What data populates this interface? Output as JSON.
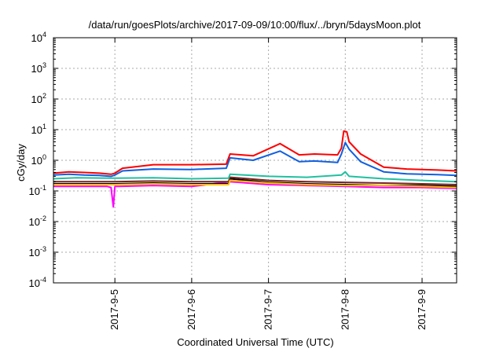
{
  "chart_data": {
    "type": "line",
    "title": "/data/run/goesPlots/archive/2017-09-09/10:00/flux/../bryn/5daysMoon.plot",
    "xlabel": "Coordinated Universal Time (UTC)",
    "ylabel": "cGy/day",
    "x_unit": "days from 2017-09-05 00:00 UTC",
    "xlim": [
      -0.8,
      4.45
    ],
    "x_ticks": [
      {
        "x": 0,
        "label": "2017-9-5"
      },
      {
        "x": 1,
        "label": "2017-9-6"
      },
      {
        "x": 2,
        "label": "2017-9-7"
      },
      {
        "x": 3,
        "label": "2017-9-8"
      },
      {
        "x": 4,
        "label": "2017-9-9"
      }
    ],
    "y_scale": "log",
    "ylim": [
      0.0001,
      10000
    ],
    "y_ticks": [
      {
        "v": 0.0001,
        "base": "10",
        "exp": "-4"
      },
      {
        "v": 0.001,
        "base": "10",
        "exp": "-3"
      },
      {
        "v": 0.01,
        "base": "10",
        "exp": "-2"
      },
      {
        "v": 0.1,
        "base": "10",
        "exp": "-1"
      },
      {
        "v": 1,
        "base": "10",
        "exp": "0"
      },
      {
        "v": 10,
        "base": "10",
        "exp": "1"
      },
      {
        "v": 100,
        "base": "10",
        "exp": "2"
      },
      {
        "v": 1000,
        "base": "10",
        "exp": "3"
      },
      {
        "v": 10000,
        "base": "10",
        "exp": "4"
      }
    ],
    "grid": true,
    "series": [
      {
        "color": "#ff00ff",
        "x": [
          -0.8,
          -0.1,
          -0.05,
          -0.02,
          0.0,
          0.05,
          0.5,
          1.0,
          1.5,
          2.0,
          2.5,
          3.0,
          3.5,
          4.0,
          4.45
        ],
        "y": [
          0.14,
          0.14,
          0.13,
          0.03,
          0.14,
          0.14,
          0.15,
          0.14,
          0.2,
          0.16,
          0.15,
          0.14,
          0.13,
          0.13,
          0.12
        ]
      },
      {
        "color": "#000000",
        "x": [
          -0.8,
          0.0,
          0.5,
          1.0,
          1.48,
          1.5,
          2.0,
          2.5,
          3.0,
          3.5,
          4.0,
          4.45
        ],
        "y": [
          0.17,
          0.17,
          0.18,
          0.17,
          0.17,
          0.25,
          0.19,
          0.17,
          0.16,
          0.15,
          0.15,
          0.14
        ]
      },
      {
        "color": "#7a2020",
        "x": [
          -0.8,
          0.0,
          0.5,
          1.0,
          1.48,
          1.5,
          2.0,
          2.5,
          3.0,
          3.5,
          4.0,
          4.45
        ],
        "y": [
          0.2,
          0.2,
          0.21,
          0.2,
          0.2,
          0.28,
          0.22,
          0.2,
          0.19,
          0.18,
          0.17,
          0.16
        ]
      },
      {
        "color": "#ffc000",
        "x": [
          -0.8,
          0.0,
          0.5,
          1.0,
          1.48,
          1.5,
          2.0,
          2.5,
          3.0,
          3.5,
          4.0,
          4.45
        ],
        "y": [
          0.16,
          0.16,
          0.17,
          0.16,
          0.16,
          0.22,
          0.18,
          0.16,
          0.15,
          0.15,
          0.14,
          0.13
        ]
      },
      {
        "color": "#20c0a0",
        "x": [
          -0.8,
          -0.5,
          0.0,
          0.5,
          1.0,
          1.48,
          1.5,
          2.0,
          2.5,
          2.95,
          3.0,
          3.05,
          3.5,
          4.0,
          4.45
        ],
        "y": [
          0.25,
          0.27,
          0.26,
          0.27,
          0.25,
          0.26,
          0.35,
          0.3,
          0.28,
          0.33,
          0.42,
          0.3,
          0.25,
          0.22,
          0.2
        ]
      },
      {
        "color": "#1060e0",
        "x": [
          -0.8,
          -0.6,
          -0.4,
          -0.2,
          -0.05,
          0.0,
          0.1,
          0.5,
          1.0,
          1.45,
          1.5,
          1.8,
          2.15,
          2.4,
          2.6,
          2.9,
          2.95,
          3.0,
          3.05,
          3.2,
          3.5,
          3.8,
          4.2,
          4.45
        ],
        "y": [
          0.33,
          0.35,
          0.33,
          0.32,
          0.3,
          0.33,
          0.45,
          0.52,
          0.5,
          0.55,
          1.2,
          1.0,
          2.0,
          0.9,
          0.95,
          0.85,
          1.6,
          3.8,
          2.3,
          0.9,
          0.42,
          0.36,
          0.34,
          0.32
        ]
      },
      {
        "color": "#ff0000",
        "x": [
          -0.8,
          -0.6,
          -0.4,
          -0.2,
          -0.05,
          0.0,
          0.1,
          0.5,
          1.0,
          1.45,
          1.5,
          1.8,
          2.15,
          2.4,
          2.6,
          2.9,
          2.95,
          2.98,
          3.02,
          3.05,
          3.2,
          3.5,
          3.8,
          4.2,
          4.45
        ],
        "y": [
          0.38,
          0.42,
          0.4,
          0.38,
          0.35,
          0.38,
          0.55,
          0.72,
          0.72,
          0.75,
          1.6,
          1.4,
          3.5,
          1.5,
          1.6,
          1.5,
          2.5,
          9.0,
          8.5,
          4.0,
          1.6,
          0.6,
          0.52,
          0.48,
          0.45
        ]
      }
    ]
  }
}
